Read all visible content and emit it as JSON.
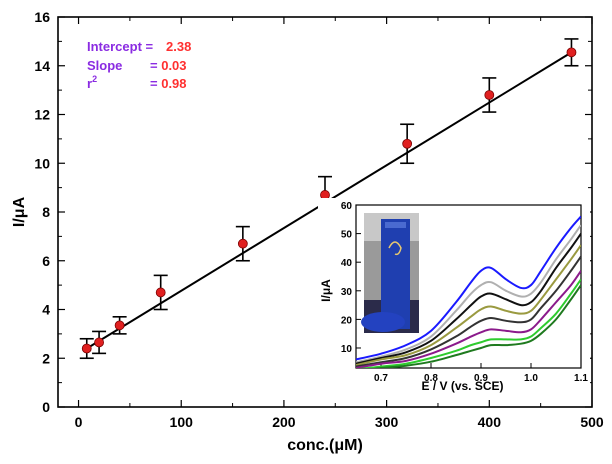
{
  "chart_data": [
    {
      "type": "scatter",
      "xlabel": "conc.(μM)",
      "ylabel": "I/μA",
      "xlim": [
        -20,
        500
      ],
      "ylim": [
        0,
        16
      ],
      "x_ticks": [
        0,
        100,
        200,
        300,
        400,
        500
      ],
      "y_ticks": [
        0,
        2,
        4,
        6,
        8,
        10,
        12,
        14,
        16
      ],
      "grid": false,
      "series": [
        {
          "x": [
            8,
            20,
            40,
            80,
            160,
            240,
            320,
            400,
            480
          ],
          "y": [
            2.4,
            2.65,
            3.35,
            4.7,
            6.7,
            8.7,
            10.8,
            12.8,
            14.55
          ],
          "error": [
            0.4,
            0.45,
            0.35,
            0.7,
            0.7,
            0.75,
            0.8,
            0.7,
            0.55
          ],
          "marker_color": "#e02020"
        }
      ],
      "fit_line": {
        "intercept": 2.38,
        "slope": 0.03,
        "x_range": [
          8,
          480
        ]
      },
      "annotations": [
        {
          "label": "Intercept =",
          "value": "2.38"
        },
        {
          "label": "Slope",
          "value": "= 0.03"
        },
        {
          "label": "r²",
          "value": "= 0.98"
        }
      ],
      "annotation_label_color": "#8a2be2",
      "annotation_value_color": "#ff3030"
    },
    {
      "type": "line",
      "xlabel": "E / V (vs. SCE)",
      "ylabel": "I/μA",
      "xlim": [
        0.65,
        1.1
      ],
      "ylim": [
        3,
        60
      ],
      "x_ticks": [
        0.7,
        0.8,
        0.9,
        1.0,
        1.1
      ],
      "y_ticks": [
        10,
        20,
        30,
        40,
        50,
        60
      ],
      "grid": false,
      "series": [
        {
          "color": "#1a1aff",
          "x": [
            0.65,
            0.7,
            0.75,
            0.8,
            0.85,
            0.88,
            0.9,
            0.92,
            0.95,
            0.98,
            1.0,
            1.02,
            1.05,
            1.08,
            1.1
          ],
          "y": [
            6,
            8,
            11,
            16,
            26,
            33,
            37,
            38,
            34,
            31,
            32,
            37,
            45,
            52,
            56
          ]
        },
        {
          "color": "#b0b0b0",
          "x": [
            0.65,
            0.7,
            0.75,
            0.8,
            0.85,
            0.88,
            0.9,
            0.92,
            0.95,
            0.98,
            1.0,
            1.02,
            1.05,
            1.08,
            1.1
          ],
          "y": [
            5,
            7,
            9.5,
            14,
            23,
            29,
            32,
            33,
            30,
            28,
            29,
            33,
            41,
            48,
            53
          ]
        },
        {
          "color": "#111111",
          "x": [
            0.65,
            0.7,
            0.75,
            0.8,
            0.85,
            0.88,
            0.9,
            0.92,
            0.95,
            0.98,
            1.0,
            1.02,
            1.05,
            1.08,
            1.1
          ],
          "y": [
            4.5,
            6.5,
            8.5,
            12.5,
            20,
            25,
            28,
            29,
            27,
            25,
            26,
            30,
            38,
            45,
            50
          ]
        },
        {
          "color": "#9a9a40",
          "x": [
            0.65,
            0.7,
            0.75,
            0.8,
            0.85,
            0.88,
            0.9,
            0.92,
            0.95,
            0.98,
            1.0,
            1.02,
            1.05,
            1.08,
            1.1
          ],
          "y": [
            4,
            6,
            7.5,
            11,
            17,
            21,
            23.5,
            24.5,
            23,
            22,
            23,
            27,
            34,
            41,
            46
          ]
        },
        {
          "color": "#333333",
          "x": [
            0.65,
            0.7,
            0.75,
            0.8,
            0.85,
            0.88,
            0.9,
            0.92,
            0.95,
            0.98,
            1.0,
            1.02,
            1.05,
            1.08,
            1.1
          ],
          "y": [
            3.5,
            5,
            6.5,
            9.5,
            14,
            17.5,
            19.5,
            20.5,
            19.5,
            19,
            20,
            24,
            30,
            37,
            42
          ]
        },
        {
          "color": "#8b1a8b",
          "x": [
            0.65,
            0.7,
            0.75,
            0.8,
            0.85,
            0.88,
            0.9,
            0.92,
            0.95,
            0.98,
            1.0,
            1.02,
            1.05,
            1.08,
            1.1
          ],
          "y": [
            3,
            4.5,
            5.5,
            8,
            11.5,
            14,
            15.5,
            16.5,
            16,
            15.5,
            16.5,
            20,
            26,
            32,
            37
          ]
        },
        {
          "color": "#2ecc2e",
          "x": [
            0.65,
            0.7,
            0.75,
            0.8,
            0.85,
            0.88,
            0.9,
            0.92,
            0.95,
            0.98,
            1.0,
            1.02,
            1.05,
            1.08,
            1.1
          ],
          "y": [
            2.5,
            3.5,
            4.5,
            6.5,
            9,
            11,
            12,
            13,
            13,
            13,
            14,
            17,
            22,
            29,
            34
          ]
        },
        {
          "color": "#1f7a1f",
          "x": [
            0.65,
            0.7,
            0.75,
            0.8,
            0.85,
            0.88,
            0.9,
            0.92,
            0.95,
            0.98,
            1.0,
            1.02,
            1.05,
            1.08,
            1.1
          ],
          "y": [
            2,
            3,
            3.8,
            5.2,
            7.5,
            9,
            10,
            11,
            11,
            11.5,
            12.5,
            15,
            20,
            27,
            32
          ]
        }
      ]
    }
  ]
}
